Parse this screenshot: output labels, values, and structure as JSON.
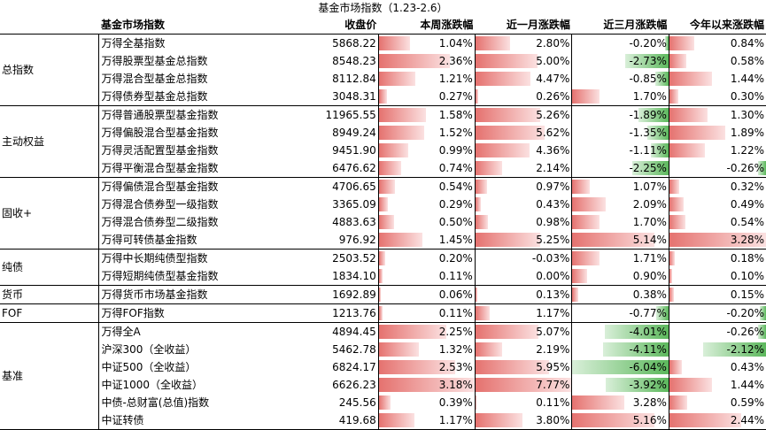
{
  "title": "基金市场指数（1.23-2.6）",
  "headers": {
    "name": "基金市场指数",
    "close": "收盘价",
    "week": "本周涨跌幅",
    "month": "近一月涨跌幅",
    "quarter": "近三月涨跌幅",
    "ytd": "今年以来涨跌幅"
  },
  "colors": {
    "positive_bar": "#e5726f",
    "negative_bar": "#5cb85c"
  },
  "groups": [
    {
      "category": "总指数",
      "rows": [
        {
          "name": "万得全基指数",
          "close": "5868.22",
          "week": "1.04%",
          "month": "2.80%",
          "quarter": "-0.20%",
          "ytd": "0.84%"
        },
        {
          "name": "万得股票型基金总指数",
          "close": "8548.23",
          "week": "2.36%",
          "month": "5.00%",
          "quarter": "-2.73%",
          "ytd": "0.58%"
        },
        {
          "name": "万得混合型基金总指数",
          "close": "8112.84",
          "week": "1.21%",
          "month": "4.47%",
          "quarter": "-0.85%",
          "ytd": "1.44%"
        },
        {
          "name": "万得债券型基金总指数",
          "close": "3048.31",
          "week": "0.27%",
          "month": "0.26%",
          "quarter": "1.70%",
          "ytd": "0.30%"
        }
      ]
    },
    {
      "category": "主动权益",
      "rows": [
        {
          "name": "万得普通股票型基金指数",
          "close": "11965.55",
          "week": "1.58%",
          "month": "5.26%",
          "quarter": "-1.89%",
          "ytd": "1.30%"
        },
        {
          "name": "万得偏股混合型基金指数",
          "close": "8949.24",
          "week": "1.52%",
          "month": "5.62%",
          "quarter": "-1.35%",
          "ytd": "1.89%"
        },
        {
          "name": "万得灵活配置型基金指数",
          "close": "9451.90",
          "week": "0.99%",
          "month": "4.36%",
          "quarter": "-1.11%",
          "ytd": "1.22%"
        },
        {
          "name": "万得平衡混合型基金指数",
          "close": "6476.62",
          "week": "0.74%",
          "month": "2.14%",
          "quarter": "-2.25%",
          "ytd": "-0.26%"
        }
      ]
    },
    {
      "category": "固收+",
      "rows": [
        {
          "name": "万得偏债混合型基金指数",
          "close": "4706.65",
          "week": "0.54%",
          "month": "0.97%",
          "quarter": "1.07%",
          "ytd": "0.32%"
        },
        {
          "name": "万得混合债券型一级指数",
          "close": "3365.09",
          "week": "0.29%",
          "month": "0.43%",
          "quarter": "2.09%",
          "ytd": "0.49%"
        },
        {
          "name": "万得混合债券型二级指数",
          "close": "4883.63",
          "week": "0.50%",
          "month": "0.98%",
          "quarter": "1.70%",
          "ytd": "0.54%"
        },
        {
          "name": "万得可转债基金指数",
          "close": "976.92",
          "week": "1.45%",
          "month": "5.25%",
          "quarter": "5.14%",
          "ytd": "3.28%"
        }
      ]
    },
    {
      "category": "纯债",
      "rows": [
        {
          "name": "万得中长期纯债型指数",
          "close": "2503.52",
          "week": "0.20%",
          "month": "-0.03%",
          "quarter": "1.71%",
          "ytd": "0.18%"
        },
        {
          "name": "万得短期纯债型基金指数",
          "close": "1834.10",
          "week": "0.11%",
          "month": "0.00%",
          "quarter": "0.90%",
          "ytd": "0.10%"
        }
      ]
    },
    {
      "category": "货币",
      "rows": [
        {
          "name": "万得货币市场基金指数",
          "close": "1692.89",
          "week": "0.06%",
          "month": "0.13%",
          "quarter": "0.38%",
          "ytd": "0.15%"
        }
      ]
    },
    {
      "category": "FOF",
      "rows": [
        {
          "name": "万得FOF指数",
          "close": "1213.76",
          "week": "0.11%",
          "month": "1.17%",
          "quarter": "-0.77%",
          "ytd": "-0.20%"
        }
      ]
    },
    {
      "category": "基准",
      "rows": [
        {
          "name": "万得全A",
          "close": "4894.45",
          "week": "2.25%",
          "month": "5.07%",
          "quarter": "-4.01%",
          "ytd": "-0.26%"
        },
        {
          "name": "沪深300（全收益）",
          "close": "5462.78",
          "week": "1.32%",
          "month": "2.19%",
          "quarter": "-4.11%",
          "ytd": "-2.12%"
        },
        {
          "name": "中证500（全收益）",
          "close": "6824.17",
          "week": "2.53%",
          "month": "5.95%",
          "quarter": "-6.04%",
          "ytd": "0.43%"
        },
        {
          "name": "中证1000（全收益）",
          "close": "6626.23",
          "week": "3.18%",
          "month": "7.77%",
          "quarter": "-3.92%",
          "ytd": "1.44%"
        },
        {
          "name": "中债-总财富(总值)指数",
          "close": "245.56",
          "week": "0.39%",
          "month": "0.11%",
          "quarter": "3.28%",
          "ytd": "0.59%"
        },
        {
          "name": "中证转债",
          "close": "419.68",
          "week": "1.17%",
          "month": "3.80%",
          "quarter": "5.16%",
          "ytd": "2.44%"
        }
      ]
    }
  ]
}
